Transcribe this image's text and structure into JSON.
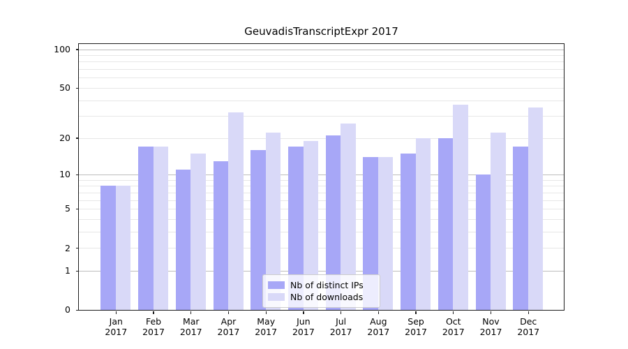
{
  "chart_data": {
    "type": "bar",
    "title": "GeuvadisTranscriptExpr 2017",
    "categories": [
      "Jan",
      "Feb",
      "Mar",
      "Apr",
      "May",
      "Jun",
      "Jul",
      "Aug",
      "Sep",
      "Oct",
      "Nov",
      "Dec"
    ],
    "category_year_label": "2017",
    "series": [
      {
        "name": "Nb of distinct IPs",
        "color": "#a7a7f7",
        "values": [
          8,
          17,
          11,
          13,
          16,
          17,
          21,
          14,
          15,
          20,
          10,
          17
        ]
      },
      {
        "name": "Nb of downloads",
        "color": "#d9d9f8",
        "values": [
          8,
          17,
          15,
          32,
          22,
          19,
          26,
          14,
          20,
          37,
          22,
          35
        ]
      }
    ],
    "xlabel": "",
    "ylabel": "",
    "y_axis": {
      "scale": "log10(1+y)",
      "ylim": [
        0,
        110
      ],
      "ticks": [
        100,
        50,
        20,
        10,
        5,
        2,
        1,
        0
      ]
    },
    "grid": {
      "major_values": [
        1,
        10,
        100
      ],
      "minor_values": [
        2,
        3,
        4,
        5,
        6,
        7,
        8,
        9,
        20,
        30,
        40,
        50,
        60,
        70,
        80,
        90
      ]
    },
    "legend": {
      "position": "lower-center-right-of-middle",
      "entries": [
        "Nb of distinct IPs",
        "Nb of downloads"
      ]
    },
    "colors": {
      "grid_minor": "#e7e7e7",
      "grid_major": "#bdbdbd",
      "spine": "#1c1c1c",
      "background": "#ffffff"
    }
  }
}
